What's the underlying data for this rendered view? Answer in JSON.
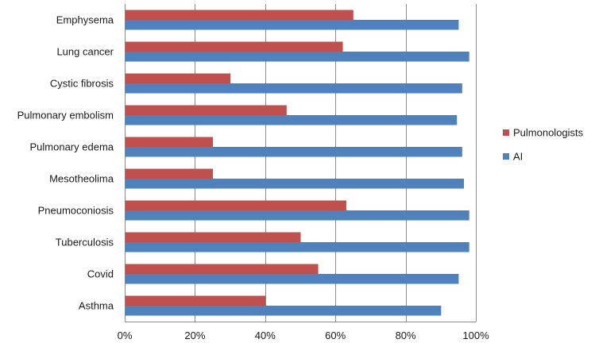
{
  "chart_data": {
    "type": "bar",
    "orientation": "horizontal",
    "categories": [
      "Emphysema",
      "Lung cancer",
      "Cystic fibrosis",
      "Pulmonary embolism",
      "Pulmonary edema",
      "Mesotheolima",
      "Pneumoconiosis",
      "Tuberculosis",
      "Covid",
      "Asthma"
    ],
    "series": [
      {
        "name": "Pulmonologists",
        "color": "#c0504d",
        "values": [
          65,
          62,
          30,
          46,
          25,
          25,
          63,
          50,
          55,
          40
        ]
      },
      {
        "name": "AI",
        "color": "#4f81bd",
        "values": [
          95,
          98,
          96,
          94.5,
          96,
          96.5,
          98,
          98,
          95,
          90
        ]
      }
    ],
    "xlim": [
      0,
      100
    ],
    "xticks": [
      "0%",
      "20%",
      "40%",
      "60%",
      "80%",
      "100%"
    ],
    "xtick_values": [
      0,
      20,
      40,
      60,
      80,
      100
    ],
    "grid": true,
    "legend_position": "right",
    "legend_order": [
      0,
      1
    ]
  }
}
